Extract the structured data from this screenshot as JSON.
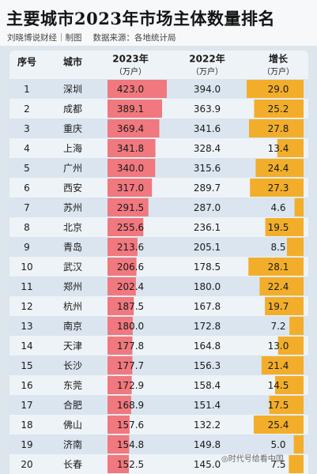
{
  "title": "主要城市2023年市场主体数量排名",
  "subtitle": {
    "author": "刘晓博说财经｜制图",
    "source": "数据来源：各地统计局"
  },
  "watermark": "◎时代号给看中国",
  "colors": {
    "bar_2023": "#f0787e",
    "bar_growth": "#f2ae2a",
    "row_alt": "#dae5ef",
    "row_plain": "#eef3f7"
  },
  "chart_data": {
    "type": "table",
    "headers": {
      "rank": "序号",
      "city": "城市",
      "y2023": "2023年",
      "y2023_unit": "（万户）",
      "y2022": "2022年",
      "y2022_unit": "（万户）",
      "growth": "增长",
      "growth_unit": "（万户）"
    },
    "rows": [
      {
        "rank": "1",
        "city": "深圳",
        "y2023": "423.0",
        "y2022": "394.0",
        "growth": "29.0"
      },
      {
        "rank": "2",
        "city": "成都",
        "y2023": "389.1",
        "y2022": "363.9",
        "growth": "25.2"
      },
      {
        "rank": "3",
        "city": "重庆",
        "y2023": "369.4",
        "y2022": "341.6",
        "growth": "27.8"
      },
      {
        "rank": "4",
        "city": "上海",
        "y2023": "341.8",
        "y2022": "328.4",
        "growth": "13.4"
      },
      {
        "rank": "5",
        "city": "广州",
        "y2023": "340.0",
        "y2022": "315.6",
        "growth": "24.4"
      },
      {
        "rank": "6",
        "city": "西安",
        "y2023": "317.0",
        "y2022": "289.7",
        "growth": "27.3"
      },
      {
        "rank": "7",
        "city": "苏州",
        "y2023": "291.5",
        "y2022": "287.0",
        "growth": "4.6"
      },
      {
        "rank": "8",
        "city": "北京",
        "y2023": "255.6",
        "y2022": "236.1",
        "growth": "19.5"
      },
      {
        "rank": "9",
        "city": "青岛",
        "y2023": "213.6",
        "y2022": "205.1",
        "growth": "8.5"
      },
      {
        "rank": "10",
        "city": "武汉",
        "y2023": "206.6",
        "y2022": "178.5",
        "growth": "28.1"
      },
      {
        "rank": "11",
        "city": "郑州",
        "y2023": "202.4",
        "y2022": "180.0",
        "growth": "22.4"
      },
      {
        "rank": "12",
        "city": "杭州",
        "y2023": "187.5",
        "y2022": "167.8",
        "growth": "19.7"
      },
      {
        "rank": "13",
        "city": "南京",
        "y2023": "180.0",
        "y2022": "172.8",
        "growth": "7.2"
      },
      {
        "rank": "14",
        "city": "天津",
        "y2023": "177.8",
        "y2022": "164.8",
        "growth": "13.0"
      },
      {
        "rank": "15",
        "city": "长沙",
        "y2023": "177.7",
        "y2022": "156.3",
        "growth": "21.4"
      },
      {
        "rank": "16",
        "city": "东莞",
        "y2023": "172.9",
        "y2022": "158.4",
        "growth": "14.5"
      },
      {
        "rank": "17",
        "city": "合肥",
        "y2023": "168.9",
        "y2022": "151.4",
        "growth": "17.5"
      },
      {
        "rank": "18",
        "city": "佛山",
        "y2023": "157.6",
        "y2022": "132.2",
        "growth": "25.4"
      },
      {
        "rank": "19",
        "city": "济南",
        "y2023": "154.8",
        "y2022": "149.8",
        "growth": "5.0"
      },
      {
        "rank": "20",
        "city": "长春",
        "y2023": "152.5",
        "y2022": "145.0",
        "growth": "7.5"
      }
    ]
  }
}
